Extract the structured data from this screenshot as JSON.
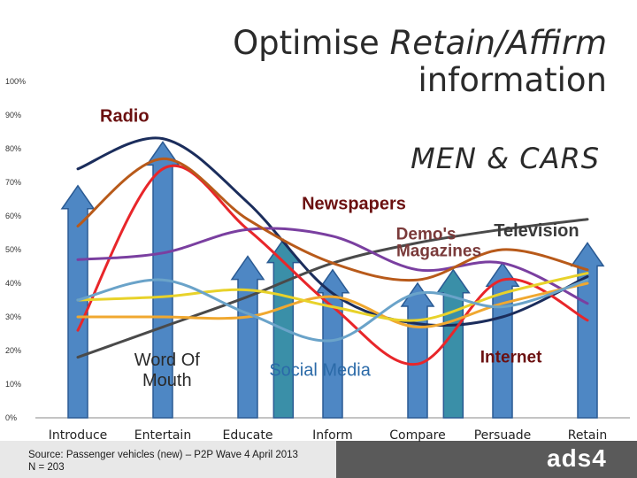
{
  "title": {
    "line1_regular": "Optimise ",
    "line1_italic": "Retain/Affirm",
    "line2": "information"
  },
  "subtitle": "MEN & CARS",
  "source": {
    "line1": "Source: Passenger vehicles (new) – P2P Wave 4 April 2013",
    "line2": "N = 203"
  },
  "logo": {
    "text": "ads4",
    "icon": "ads4-logo-icon"
  },
  "colors": {
    "arrow_fill": "#4e87c4",
    "arrow_stroke": "#2a5a93",
    "arrow_fill_teal": "#3a8fa8",
    "footer": "#5a5a5a"
  },
  "chart_data": {
    "type": "line",
    "x": [
      "Introduce",
      "Entertain",
      "Educate",
      "Inform",
      "Compare",
      "Persuade",
      "Retain"
    ],
    "ylim": [
      0,
      100
    ],
    "y_ticks": [
      "0%",
      "10%",
      "20%",
      "30%",
      "40%",
      "50%",
      "60%",
      "70%",
      "80%",
      "90%",
      "100%"
    ],
    "grid": false,
    "series": [
      {
        "name": "Radio",
        "color": "#1b2d5c",
        "values": [
          74,
          83,
          64,
          37,
          28,
          30,
          42
        ]
      },
      {
        "name": "Television",
        "color": "#4a4a4a",
        "values": [
          18,
          27,
          36,
          46,
          52,
          56,
          59
        ]
      },
      {
        "name": "Newspapers",
        "color": "#e8262a",
        "values": [
          26,
          74,
          56,
          33,
          16,
          41,
          29
        ]
      },
      {
        "name": "Magazines",
        "color": "#7a3fa0",
        "values": [
          47,
          49,
          56,
          54,
          44,
          46,
          34
        ]
      },
      {
        "name": "Demo's",
        "color": "#b85a1a",
        "values": [
          57,
          77,
          59,
          46,
          41,
          50,
          44
        ]
      },
      {
        "name": "Internet",
        "color": "#f0a830",
        "values": [
          30,
          30,
          30,
          36,
          27,
          34,
          40
        ]
      },
      {
        "name": "Social Media",
        "color": "#e8d22a",
        "values": [
          35,
          36,
          38,
          33,
          29,
          37,
          43
        ]
      },
      {
        "name": "Word Of Mouth",
        "color": "#6aa3c9",
        "values": [
          35,
          41,
          31,
          23,
          37,
          33,
          41
        ]
      }
    ],
    "arrows": [
      {
        "category": "Introduce",
        "value": 69
      },
      {
        "category": "Entertain",
        "value": 82
      },
      {
        "category": "Educate",
        "value": 48
      },
      {
        "category": "Educate",
        "value": 53,
        "offset": "right"
      },
      {
        "category": "Inform",
        "value": 44
      },
      {
        "category": "Compare",
        "value": 40
      },
      {
        "category": "Compare",
        "value": 44,
        "offset": "right"
      },
      {
        "category": "Persuade",
        "value": 46
      },
      {
        "category": "Retain",
        "value": 52
      }
    ],
    "annotations": [
      {
        "text": "Radio",
        "x": 1.05,
        "y": 88,
        "color": "#6b1010",
        "bold": true,
        "size": 20
      },
      {
        "text": "Newspapers",
        "x": 3.75,
        "y": 62,
        "color": "#6b1010",
        "bold": true,
        "size": 20
      },
      {
        "text": "Television",
        "x": 5.9,
        "y": 54,
        "color": "#3a3a3a",
        "bold": true,
        "size": 20
      },
      {
        "text": "Demo's",
        "x": 4.6,
        "y": 53,
        "color": "#7a3a3a",
        "bold": true,
        "size": 19
      },
      {
        "text": "Magazines",
        "x": 4.75,
        "y": 48,
        "color": "#7a3a3a",
        "bold": true,
        "size": 19
      },
      {
        "text": "Internet",
        "x": 5.6,
        "y": 16.5,
        "color": "#6b1010",
        "bold": true,
        "size": 19
      },
      {
        "text": "Social Media",
        "x": 3.35,
        "y": 12.5,
        "color": "#2b6aa8",
        "bold": false,
        "size": 20
      },
      {
        "text": "Word Of",
        "x": 1.55,
        "y": 15.5,
        "color": "#2a2a2a",
        "bold": false,
        "size": 20
      },
      {
        "text": "Mouth",
        "x": 1.55,
        "y": 9.5,
        "color": "#2a2a2a",
        "bold": false,
        "size": 20
      }
    ]
  }
}
